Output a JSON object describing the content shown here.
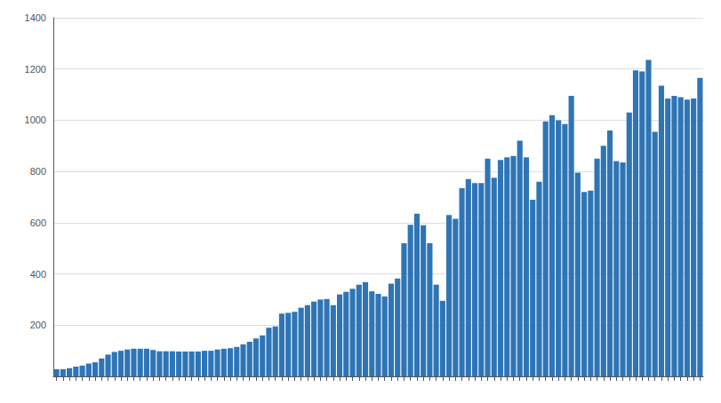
{
  "chart_data": {
    "type": "bar",
    "categories": [
      null,
      null,
      null,
      null,
      null,
      null,
      null,
      null,
      null,
      null,
      null,
      null,
      null,
      null,
      null,
      null,
      null,
      null,
      null,
      null,
      null,
      null,
      null,
      null,
      null,
      null,
      null,
      null,
      null,
      null,
      null,
      null,
      null,
      null,
      null,
      null,
      null,
      null,
      null,
      null,
      null,
      null,
      null,
      null,
      null,
      null,
      null,
      null,
      null,
      null,
      null,
      null,
      null,
      null,
      null,
      null,
      null,
      null,
      null,
      null,
      null,
      null,
      null,
      null,
      null,
      null,
      null,
      null,
      null,
      null,
      null,
      null,
      null,
      null,
      null,
      null,
      null,
      null,
      null,
      null,
      null,
      null,
      null,
      null,
      null,
      null,
      null,
      null,
      null,
      null,
      null,
      null,
      null,
      null,
      null,
      null,
      null,
      null,
      null,
      null,
      null
    ],
    "values": [
      28,
      28,
      32,
      38,
      42,
      50,
      55,
      70,
      85,
      95,
      100,
      105,
      108,
      108,
      108,
      103,
      98,
      98,
      98,
      97,
      97,
      97,
      97,
      100,
      100,
      105,
      108,
      110,
      115,
      125,
      135,
      148,
      160,
      190,
      195,
      245,
      248,
      252,
      268,
      278,
      292,
      300,
      302,
      278,
      320,
      330,
      342,
      358,
      368,
      332,
      322,
      312,
      362,
      382,
      520,
      592,
      635,
      590,
      520,
      358,
      295,
      630,
      615,
      735,
      770,
      755,
      755,
      850,
      775,
      845,
      855,
      860,
      920,
      855,
      690,
      760,
      995,
      1020,
      1000,
      985,
      1095,
      795,
      720,
      725,
      850,
      900,
      960,
      840,
      835,
      1030,
      1195,
      1190,
      1235,
      955,
      1135,
      1085,
      1095,
      1090,
      1080,
      1085,
      1165
    ],
    "color": "#2E75B6",
    "ylim": [
      0,
      1400
    ],
    "yticks": [
      200,
      400,
      600,
      800,
      1000,
      1200,
      1400
    ],
    "grid": true
  }
}
